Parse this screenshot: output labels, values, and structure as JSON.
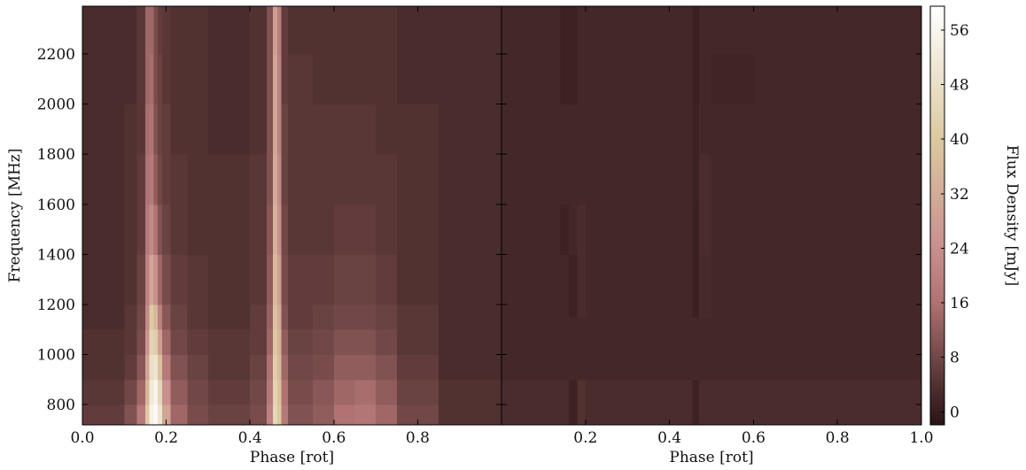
{
  "chart_data": [
    {
      "type": "heatmap",
      "xlabel": "Phase [rot]",
      "ylabel": "Frequency [MHz]",
      "xlim": [
        0,
        1
      ],
      "ylim": [
        719,
        2391
      ],
      "xticks": [
        {
          "value": 0,
          "label": "0.0"
        },
        0.2,
        0.4,
        0.6,
        0.8
      ],
      "yticks": [
        800,
        1000,
        1200,
        1400,
        1600,
        1800,
        2000,
        2200
      ],
      "show_ytick_labels": true,
      "x_edges": [
        0,
        0.1,
        0.13,
        0.15,
        0.16,
        0.17,
        0.18,
        0.19,
        0.21,
        0.25,
        0.3,
        0.4,
        0.44,
        0.455,
        0.465,
        0.475,
        0.49,
        0.55,
        0.6,
        0.65,
        0.7,
        0.75,
        0.85,
        1.0
      ],
      "y_edges": [
        719,
        800,
        900,
        1000,
        1100,
        1200,
        1400,
        1600,
        1800,
        2000,
        2200,
        2391
      ],
      "values": [
        [
          6,
          10,
          18,
          40,
          55,
          58,
          50,
          30,
          14,
          9,
          7,
          9,
          20,
          45,
          40,
          18,
          10,
          12,
          16,
          17,
          14,
          8,
          4
        ],
        [
          5,
          8,
          14,
          35,
          52,
          56,
          45,
          24,
          12,
          8,
          6,
          8,
          18,
          44,
          38,
          16,
          9,
          11,
          14,
          15,
          12,
          7,
          4
        ],
        [
          4,
          6,
          11,
          30,
          48,
          50,
          38,
          18,
          10,
          7,
          5,
          7,
          16,
          42,
          36,
          14,
          8,
          9,
          12,
          12,
          10,
          6,
          3
        ],
        [
          4,
          5,
          9,
          25,
          44,
          42,
          28,
          14,
          8,
          6,
          5,
          6,
          14,
          40,
          34,
          12,
          7,
          8,
          10,
          10,
          8,
          5,
          3
        ],
        [
          3,
          5,
          8,
          22,
          40,
          35,
          20,
          11,
          7,
          5,
          4,
          6,
          13,
          38,
          32,
          10,
          6,
          7,
          8,
          8,
          7,
          5,
          3
        ],
        [
          3,
          4,
          7,
          20,
          30,
          24,
          14,
          9,
          6,
          5,
          4,
          5,
          12,
          36,
          28,
          9,
          6,
          6,
          7,
          7,
          6,
          4,
          3
        ],
        [
          3,
          4,
          6,
          18,
          22,
          16,
          10,
          7,
          5,
          4,
          4,
          5,
          11,
          34,
          24,
          8,
          5,
          5,
          6,
          6,
          5,
          4,
          3
        ],
        [
          3,
          4,
          6,
          16,
          18,
          12,
          8,
          6,
          5,
          4,
          4,
          5,
          10,
          32,
          22,
          7,
          5,
          5,
          5,
          5,
          5,
          4,
          3
        ],
        [
          3,
          4,
          5,
          15,
          16,
          10,
          7,
          6,
          4,
          4,
          3,
          4,
          10,
          30,
          20,
          7,
          5,
          5,
          5,
          5,
          4,
          4,
          3
        ],
        [
          3,
          3,
          5,
          14,
          15,
          9,
          7,
          5,
          4,
          4,
          3,
          4,
          10,
          30,
          20,
          6,
          5,
          4,
          4,
          4,
          4,
          3,
          3
        ],
        [
          3,
          3,
          5,
          14,
          14,
          9,
          6,
          5,
          4,
          4,
          3,
          4,
          10,
          28,
          19,
          6,
          4,
          4,
          4,
          4,
          4,
          3,
          3
        ]
      ]
    },
    {
      "type": "heatmap",
      "xlabel": "Phase [rot]",
      "xlim": [
        0,
        1
      ],
      "ylim": [
        719,
        2391
      ],
      "xticks": [
        0.2,
        0.4,
        0.6,
        0.8,
        {
          "value": 1,
          "label": "1.0"
        }
      ],
      "yticks": [
        800,
        1000,
        1200,
        1400,
        1600,
        1800,
        2000,
        2200
      ],
      "show_ytick_labels": false,
      "x_edges": [
        0,
        0.1,
        0.14,
        0.16,
        0.18,
        0.2,
        0.3,
        0.44,
        0.455,
        0.47,
        0.5,
        0.6,
        0.7,
        0.8,
        0.9,
        1.0
      ],
      "y_edges": [
        719,
        900,
        1150,
        1400,
        1600,
        1800,
        2000,
        2200,
        2391
      ],
      "values": [
        [
          3,
          3,
          3,
          1,
          4,
          3,
          3,
          3,
          1,
          3,
          3,
          3,
          3,
          3,
          3
        ],
        [
          2,
          2,
          2,
          2,
          2,
          2,
          2,
          2,
          2,
          2,
          2,
          2,
          2,
          2,
          2
        ],
        [
          2,
          2,
          2,
          1,
          3,
          2,
          2,
          2,
          0.5,
          2.5,
          2,
          2,
          2,
          2,
          2
        ],
        [
          2,
          2,
          1,
          2,
          3,
          2,
          2,
          2,
          0.5,
          3,
          2,
          2,
          2,
          2,
          2
        ],
        [
          2,
          2,
          2,
          2,
          2,
          2,
          2,
          2,
          1,
          3,
          2,
          2,
          2,
          2,
          2
        ],
        [
          2,
          2,
          2,
          2,
          2,
          2,
          2,
          2,
          1,
          2,
          2,
          2,
          2,
          2,
          2
        ],
        [
          2,
          2,
          1,
          1,
          2,
          2,
          2,
          2,
          0.5,
          2,
          1.5,
          2,
          2,
          2,
          2
        ],
        [
          2,
          2,
          1,
          1,
          2,
          2,
          2,
          2,
          0.5,
          2,
          2,
          2,
          2,
          2,
          2
        ]
      ],
      "colorbar": {
        "label": "Flux Density [mJy]",
        "lim": [
          -1.9,
          59.5
        ],
        "ticks": [
          0,
          8,
          16,
          24,
          32,
          40,
          48,
          56
        ],
        "colormap": [
          {
            "value": -2,
            "color": "#2a1414"
          },
          {
            "value": 3,
            "color": "#4a2c2c"
          },
          {
            "value": 16,
            "color": "#b07272"
          },
          {
            "value": 24,
            "color": "#c98f8f"
          },
          {
            "value": 40,
            "color": "#dcc9a0"
          },
          {
            "value": 60,
            "color": "#ffffff"
          }
        ]
      }
    }
  ]
}
